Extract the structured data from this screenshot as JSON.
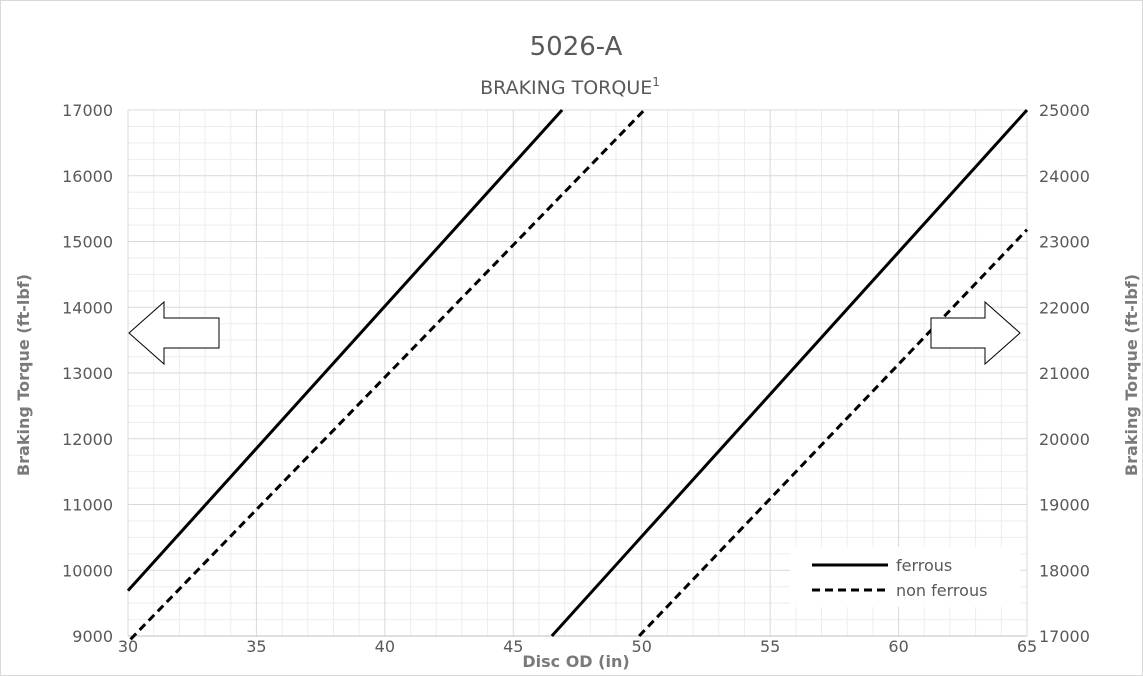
{
  "chart_data": {
    "type": "line",
    "title": "5026-A",
    "subtitle": "BRAKING TORQUE",
    "subtitle_superscript": "1",
    "xlabel": "Disc OD (in)",
    "ylabel_left": "Braking Torque (ft-lbf)",
    "ylabel_right": "Braking Torque (ft-lbf)",
    "xlim": [
      30,
      65
    ],
    "ylim_left": [
      9000,
      17000
    ],
    "ylim_right": [
      17000,
      25000
    ],
    "xticks": [
      "30",
      "35",
      "40",
      "45",
      "50",
      "55",
      "60",
      "65"
    ],
    "yticks_left": [
      "9000",
      "10000",
      "11000",
      "12000",
      "13000",
      "14000",
      "15000",
      "16000",
      "17000"
    ],
    "yticks_right": [
      "17000",
      "18000",
      "19000",
      "20000",
      "21000",
      "22000",
      "23000",
      "24000",
      "25000"
    ],
    "grid": true,
    "legend_position": "bottom-right",
    "legend": [
      {
        "label": "ferrous",
        "style": "solid"
      },
      {
        "label": "non ferrous",
        "style": "dashed"
      }
    ],
    "series": [
      {
        "name": "ferrous",
        "axis": "left",
        "style": "solid",
        "x": [
          30,
          46.9
        ],
        "y": [
          9690,
          17000
        ]
      },
      {
        "name": "non ferrous",
        "axis": "left",
        "style": "dashed",
        "x": [
          30.1,
          50.1
        ],
        "y": [
          8950,
          17000
        ]
      },
      {
        "name": "ferrous",
        "axis": "right",
        "style": "solid",
        "x": [
          46.5,
          65
        ],
        "y": [
          17000,
          25000
        ]
      },
      {
        "name": "non ferrous",
        "axis": "right",
        "style": "dashed",
        "x": [
          49.9,
          65
        ],
        "y": [
          17000,
          23180
        ]
      }
    ],
    "annotations": {
      "left_arrow": "points to left axis",
      "right_arrow": "points to right axis"
    },
    "colors": {
      "lines": "#000000",
      "grid_major": "#d9d9d9",
      "grid_minor": "#ededed",
      "text": "#595959"
    }
  }
}
